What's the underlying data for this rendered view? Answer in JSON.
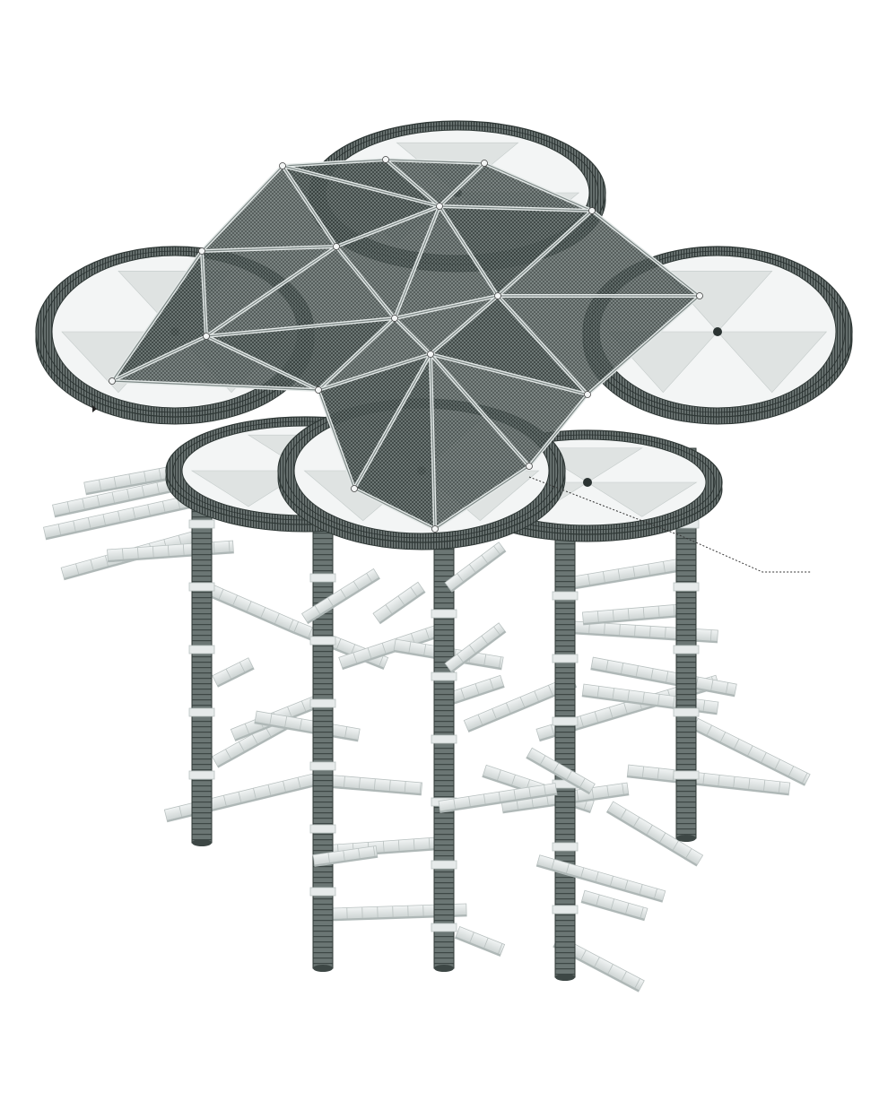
{
  "palette": {
    "steel": "#5b6664",
    "steel_dark": "#2f3836",
    "steel_light": "#8a9694",
    "mesh": "#4d5856",
    "panel": "#dfe3e2",
    "slat": "#e6eaea",
    "slat_edge": "#b9c1c0",
    "background": "#ffffff"
  },
  "structure": {
    "canopy_rings": 5,
    "ring_panel_wedges": 6,
    "lower_platforms": 2,
    "columns": 5,
    "rungs_per_column": 8,
    "roof_facets": 14,
    "slat_bars": 34
  }
}
